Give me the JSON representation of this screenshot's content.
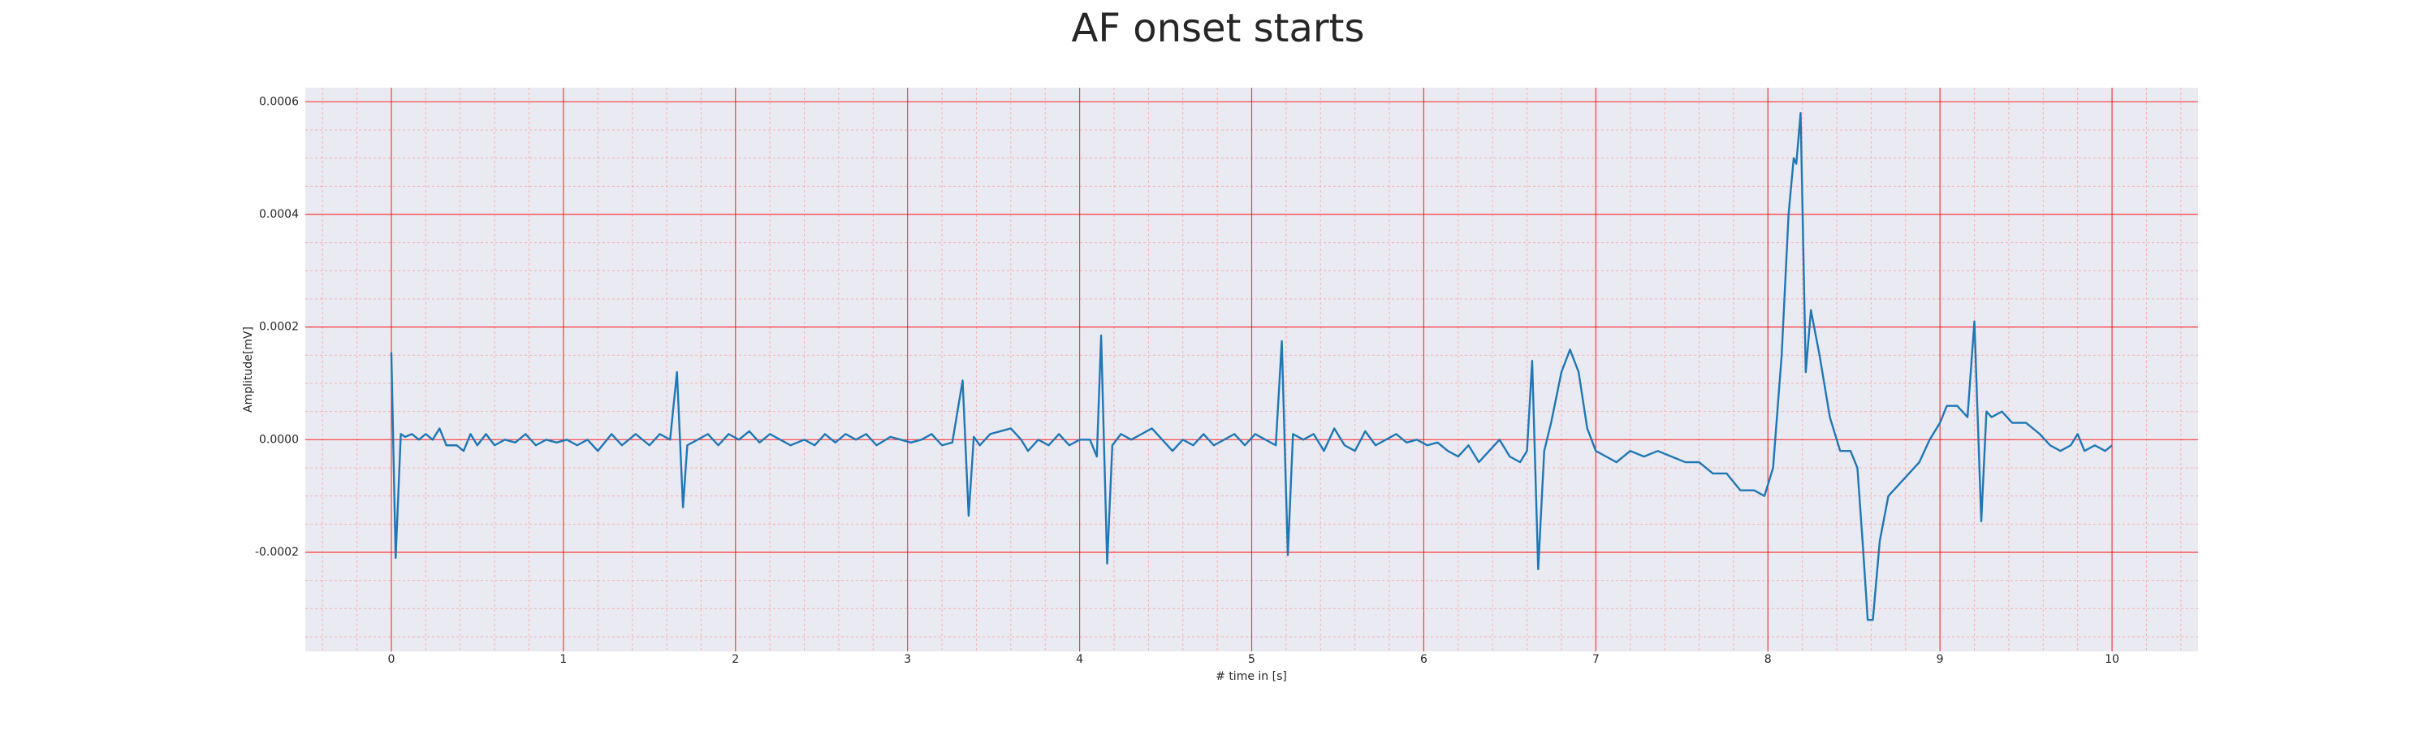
{
  "chart_data": {
    "type": "line",
    "title": "AF onset starts",
    "xlabel": "# time in [s]",
    "ylabel": "Amplitude[mV]",
    "color": "#1f77b4",
    "grid": true,
    "minor_grid": true,
    "xlim": [
      -0.5,
      10.5
    ],
    "ylim": [
      -0.000376,
      0.000625
    ],
    "xticks": [
      0,
      1,
      2,
      3,
      4,
      5,
      6,
      7,
      8,
      9,
      10
    ],
    "yticks": [
      {
        "value": -0.0002,
        "label": "-0.0002"
      },
      {
        "value": 0,
        "label": "0.0000"
      },
      {
        "value": 0.0002,
        "label": "0.0002"
      },
      {
        "value": 0.0004,
        "label": "0.0004"
      },
      {
        "value": 0.0006,
        "label": "0.0006"
      }
    ],
    "xminorticks": [
      -0.4,
      -0.2,
      0.2,
      0.4,
      0.6,
      0.8,
      1.2,
      1.4,
      1.6,
      1.8,
      2.2,
      2.4,
      2.6,
      2.8,
      3.2,
      3.4,
      3.6,
      3.8,
      4.2,
      4.4,
      4.6,
      4.8,
      5.2,
      5.4,
      5.6,
      5.8,
      6.2,
      6.4,
      6.6,
      6.8,
      7.2,
      7.4,
      7.6,
      7.8,
      8.2,
      8.4,
      8.6,
      8.8,
      9.2,
      9.4,
      9.6,
      9.8,
      10.2,
      10.4
    ],
    "yminorticks": [
      -0.00035,
      -0.0003,
      -0.00025,
      -0.00015,
      -0.0001,
      -5e-05,
      5e-05,
      0.0001,
      0.00015,
      0.00025,
      0.0003,
      0.00035,
      0.00045,
      0.0005,
      0.00055
    ],
    "x": [
      0,
      0.025,
      0.055,
      0.08,
      0.12,
      0.16,
      0.2,
      0.24,
      0.28,
      0.32,
      0.38,
      0.42,
      0.46,
      0.5,
      0.55,
      0.6,
      0.66,
      0.72,
      0.78,
      0.84,
      0.9,
      0.96,
      1.02,
      1.08,
      1.14,
      1.2,
      1.28,
      1.34,
      1.42,
      1.5,
      1.56,
      1.62,
      1.66,
      1.695,
      1.72,
      1.78,
      1.84,
      1.9,
      1.96,
      2.02,
      2.08,
      2.14,
      2.2,
      2.26,
      2.32,
      2.4,
      2.46,
      2.52,
      2.58,
      2.64,
      2.7,
      2.76,
      2.82,
      2.9,
      2.96,
      3.02,
      3.08,
      3.14,
      3.2,
      3.26,
      3.32,
      3.355,
      3.385,
      3.42,
      3.48,
      3.54,
      3.6,
      3.66,
      3.7,
      3.76,
      3.82,
      3.88,
      3.94,
      4.0,
      4.06,
      4.1,
      4.125,
      4.16,
      4.19,
      4.24,
      4.3,
      4.36,
      4.42,
      4.48,
      4.54,
      4.6,
      4.66,
      4.72,
      4.78,
      4.84,
      4.9,
      4.96,
      5.02,
      5.08,
      5.14,
      5.175,
      5.21,
      5.24,
      5.3,
      5.36,
      5.42,
      5.48,
      5.54,
      5.6,
      5.66,
      5.72,
      5.78,
      5.84,
      5.9,
      5.96,
      6.02,
      6.08,
      6.14,
      6.2,
      6.26,
      6.32,
      6.38,
      6.44,
      6.5,
      6.56,
      6.6,
      6.63,
      6.665,
      6.7,
      6.74,
      6.8,
      6.85,
      6.9,
      6.95,
      7.0,
      7.06,
      7.12,
      7.2,
      7.28,
      7.36,
      7.44,
      7.52,
      7.6,
      7.68,
      7.76,
      7.84,
      7.92,
      7.98,
      8.03,
      8.08,
      8.12,
      8.15,
      8.165,
      8.19,
      8.22,
      8.25,
      8.3,
      8.36,
      8.42,
      8.48,
      8.52,
      8.55,
      8.58,
      8.61,
      8.65,
      8.7,
      8.76,
      8.82,
      8.88,
      8.94,
      9.0,
      9.04,
      9.1,
      9.16,
      9.2,
      9.24,
      9.27,
      9.3,
      9.36,
      9.42,
      9.5,
      9.58,
      9.64,
      9.7,
      9.76,
      9.8,
      9.84,
      9.9,
      9.96,
      10.0
    ],
    "values": [
      0.000155,
      -0.00021,
      1e-05,
      5e-06,
      1e-05,
      0.0,
      1e-05,
      0.0,
      2e-05,
      -1e-05,
      -1e-05,
      -2e-05,
      1e-05,
      -1e-05,
      1e-05,
      -1e-05,
      0.0,
      -5e-06,
      1e-05,
      -1e-05,
      0.0,
      -5e-06,
      0.0,
      -1e-05,
      0.0,
      -2e-05,
      1e-05,
      -1e-05,
      1e-05,
      -1e-05,
      1e-05,
      0.0,
      0.00012,
      -0.00012,
      -1e-05,
      0.0,
      1e-05,
      -1e-05,
      1e-05,
      0.0,
      1.5e-05,
      -5e-06,
      1e-05,
      0.0,
      -1e-05,
      0.0,
      -1e-05,
      1e-05,
      -5e-06,
      1e-05,
      0.0,
      1e-05,
      -1e-05,
      5e-06,
      0.0,
      -5e-06,
      0.0,
      1e-05,
      -1e-05,
      -5e-06,
      0.000105,
      -0.000135,
      5e-06,
      -1e-05,
      1e-05,
      1.5e-05,
      2e-05,
      0.0,
      -2e-05,
      0.0,
      -1e-05,
      1e-05,
      -1e-05,
      0.0,
      0.0,
      -3e-05,
      0.000185,
      -0.00022,
      -1e-05,
      1e-05,
      0.0,
      1e-05,
      2e-05,
      0.0,
      -2e-05,
      0.0,
      -1e-05,
      1e-05,
      -1e-05,
      0.0,
      1e-05,
      -1e-05,
      1e-05,
      0.0,
      -1e-05,
      0.000175,
      -0.000205,
      1e-05,
      0.0,
      1e-05,
      -2e-05,
      2e-05,
      -1e-05,
      -2e-05,
      1.5e-05,
      -1e-05,
      0.0,
      1e-05,
      -5e-06,
      0.0,
      -1e-05,
      -5e-06,
      -2e-05,
      -3e-05,
      -1e-05,
      -4e-05,
      -2e-05,
      0.0,
      -3e-05,
      -4e-05,
      -2e-05,
      0.00014,
      -0.00023,
      -2e-05,
      3e-05,
      0.00012,
      0.00016,
      0.00012,
      2e-05,
      -2e-05,
      -3e-05,
      -4e-05,
      -2e-05,
      -3e-05,
      -2e-05,
      -3e-05,
      -4e-05,
      -4e-05,
      -6e-05,
      -6e-05,
      -9e-05,
      -9e-05,
      -0.0001,
      -5e-05,
      0.00015,
      0.0004,
      0.0005,
      0.00049,
      0.00058,
      0.00012,
      0.00023,
      0.00015,
      4e-05,
      -2e-05,
      -2e-05,
      -5e-05,
      -0.00018,
      -0.00032,
      -0.00032,
      -0.00018,
      -0.0001,
      -8e-05,
      -6e-05,
      -4e-05,
      0.0,
      3e-05,
      6e-05,
      6e-05,
      4e-05,
      0.00021,
      -0.000145,
      5e-05,
      4e-05,
      5e-05,
      3e-05,
      3e-05,
      1e-05,
      -1e-05,
      -2e-05,
      -1e-05,
      1e-05,
      -2e-05,
      -1e-05,
      -2e-05,
      -1e-05
    ]
  }
}
